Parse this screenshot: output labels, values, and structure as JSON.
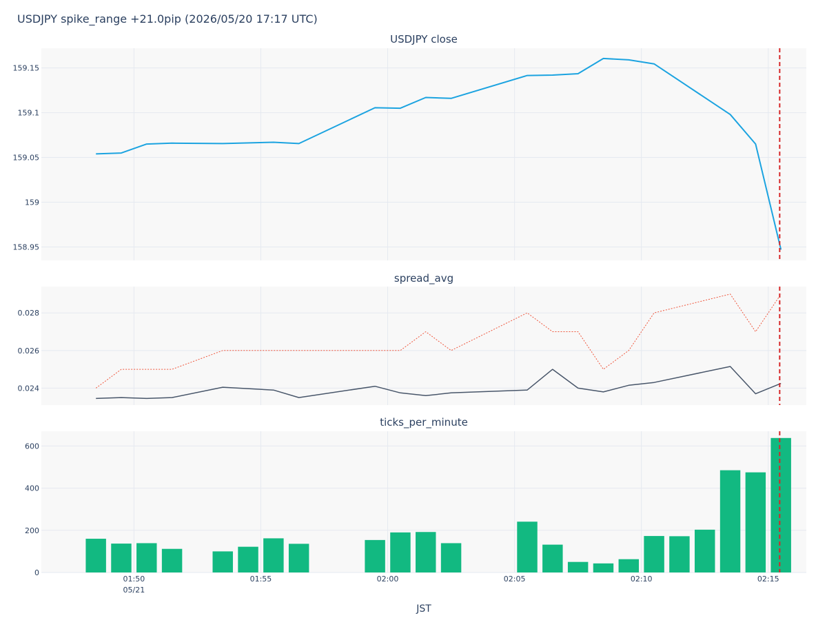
{
  "title": "USDJPY spike_range +21.0pip (2026/05/20 17:17 UTC)",
  "xlabel": "JST",
  "x_ticks": [
    {
      "time": "01:50",
      "date": "05/21"
    },
    {
      "time": "01:55",
      "date": ""
    },
    {
      "time": "02:00",
      "date": ""
    },
    {
      "time": "02:05",
      "date": ""
    },
    {
      "time": "02:10",
      "date": ""
    },
    {
      "time": "02:15",
      "date": ""
    }
  ],
  "colors": {
    "close": "#1ba3e0",
    "spread_max": "#ef553b",
    "spread_avg": "#475569",
    "ticks": "#12b981",
    "event": "#d62728",
    "plot_bg": "#f8f8f8",
    "grid": "#e5e9f0"
  },
  "chart_data": [
    {
      "type": "line",
      "title": "USDJPY close",
      "x_unit": "minutes from 01:48 JST",
      "ylim": [
        158.935,
        159.172
      ],
      "y_ticks": [
        158.95,
        159,
        159.05,
        159.1,
        159.15
      ],
      "y_tick_labels": [
        "158.95",
        "159",
        "159.05",
        "159.1",
        "159.15"
      ],
      "series": [
        {
          "x": [
            0.5,
            1.5,
            2.5,
            3.5,
            5.5,
            7.5,
            8.5,
            11.5,
            12.5,
            13.5,
            14.5,
            17.5,
            18.5,
            19.5,
            20.5,
            21.5,
            22.5,
            25.5,
            26.5,
            27.5
          ],
          "values": [
            159.054,
            159.055,
            159.065,
            159.066,
            159.0655,
            159.067,
            159.0655,
            159.1055,
            159.105,
            159.117,
            159.116,
            159.1415,
            159.142,
            159.1435,
            159.1605,
            159.159,
            159.1545,
            159.098,
            159.065,
            158.947
          ]
        }
      ],
      "event_x": 27.45
    },
    {
      "type": "line",
      "title": "spread_avg",
      "ylim": [
        0.0231,
        0.0294
      ],
      "y_ticks": [
        0.024,
        0.026,
        0.028
      ],
      "y_tick_labels": [
        "0.024",
        "0.026",
        "0.028"
      ],
      "series": [
        {
          "style": "dotted",
          "x": [
            0.5,
            1.5,
            2.5,
            3.5,
            5.5,
            7.5,
            8.5,
            11.5,
            12.5,
            13.5,
            14.5,
            17.5,
            18.5,
            19.5,
            20.5,
            21.5,
            22.5,
            25.5,
            26.5,
            27.5
          ],
          "values": [
            0.024,
            0.025,
            0.025,
            0.025,
            0.026,
            0.026,
            0.026,
            0.026,
            0.026,
            0.027,
            0.026,
            0.028,
            0.027,
            0.027,
            0.025,
            0.026,
            0.028,
            0.029,
            0.027,
            0.029
          ]
        },
        {
          "style": "solid",
          "x": [
            0.5,
            1.5,
            2.5,
            3.5,
            5.5,
            7.5,
            8.5,
            11.5,
            12.5,
            13.5,
            14.5,
            17.5,
            18.5,
            19.5,
            20.5,
            21.5,
            22.5,
            25.5,
            26.5,
            27.5
          ],
          "values": [
            0.02345,
            0.0235,
            0.02345,
            0.0235,
            0.02405,
            0.0239,
            0.0235,
            0.0241,
            0.02375,
            0.0236,
            0.02375,
            0.0239,
            0.025,
            0.024,
            0.0238,
            0.02415,
            0.0243,
            0.02515,
            0.0237,
            0.02425
          ]
        }
      ],
      "event_x": 27.45
    },
    {
      "type": "bar",
      "title": "ticks_per_minute",
      "ylim": [
        0,
        670
      ],
      "y_ticks": [
        0,
        200,
        400,
        600
      ],
      "y_tick_labels": [
        "0",
        "200",
        "400",
        "600"
      ],
      "x": [
        0.5,
        1.5,
        2.5,
        3.5,
        5.5,
        6.5,
        7.5,
        8.5,
        11.5,
        12.5,
        13.5,
        14.5,
        17.5,
        18.5,
        19.5,
        20.5,
        21.5,
        22.5,
        23.5,
        24.5,
        25.5,
        26.5,
        27.5
      ],
      "values": [
        160,
        137,
        139,
        112,
        100,
        122,
        162,
        136,
        154,
        190,
        192,
        139,
        241,
        132,
        50,
        43,
        63,
        173,
        172,
        203,
        485,
        475,
        638
      ],
      "event_x": 27.45
    }
  ]
}
